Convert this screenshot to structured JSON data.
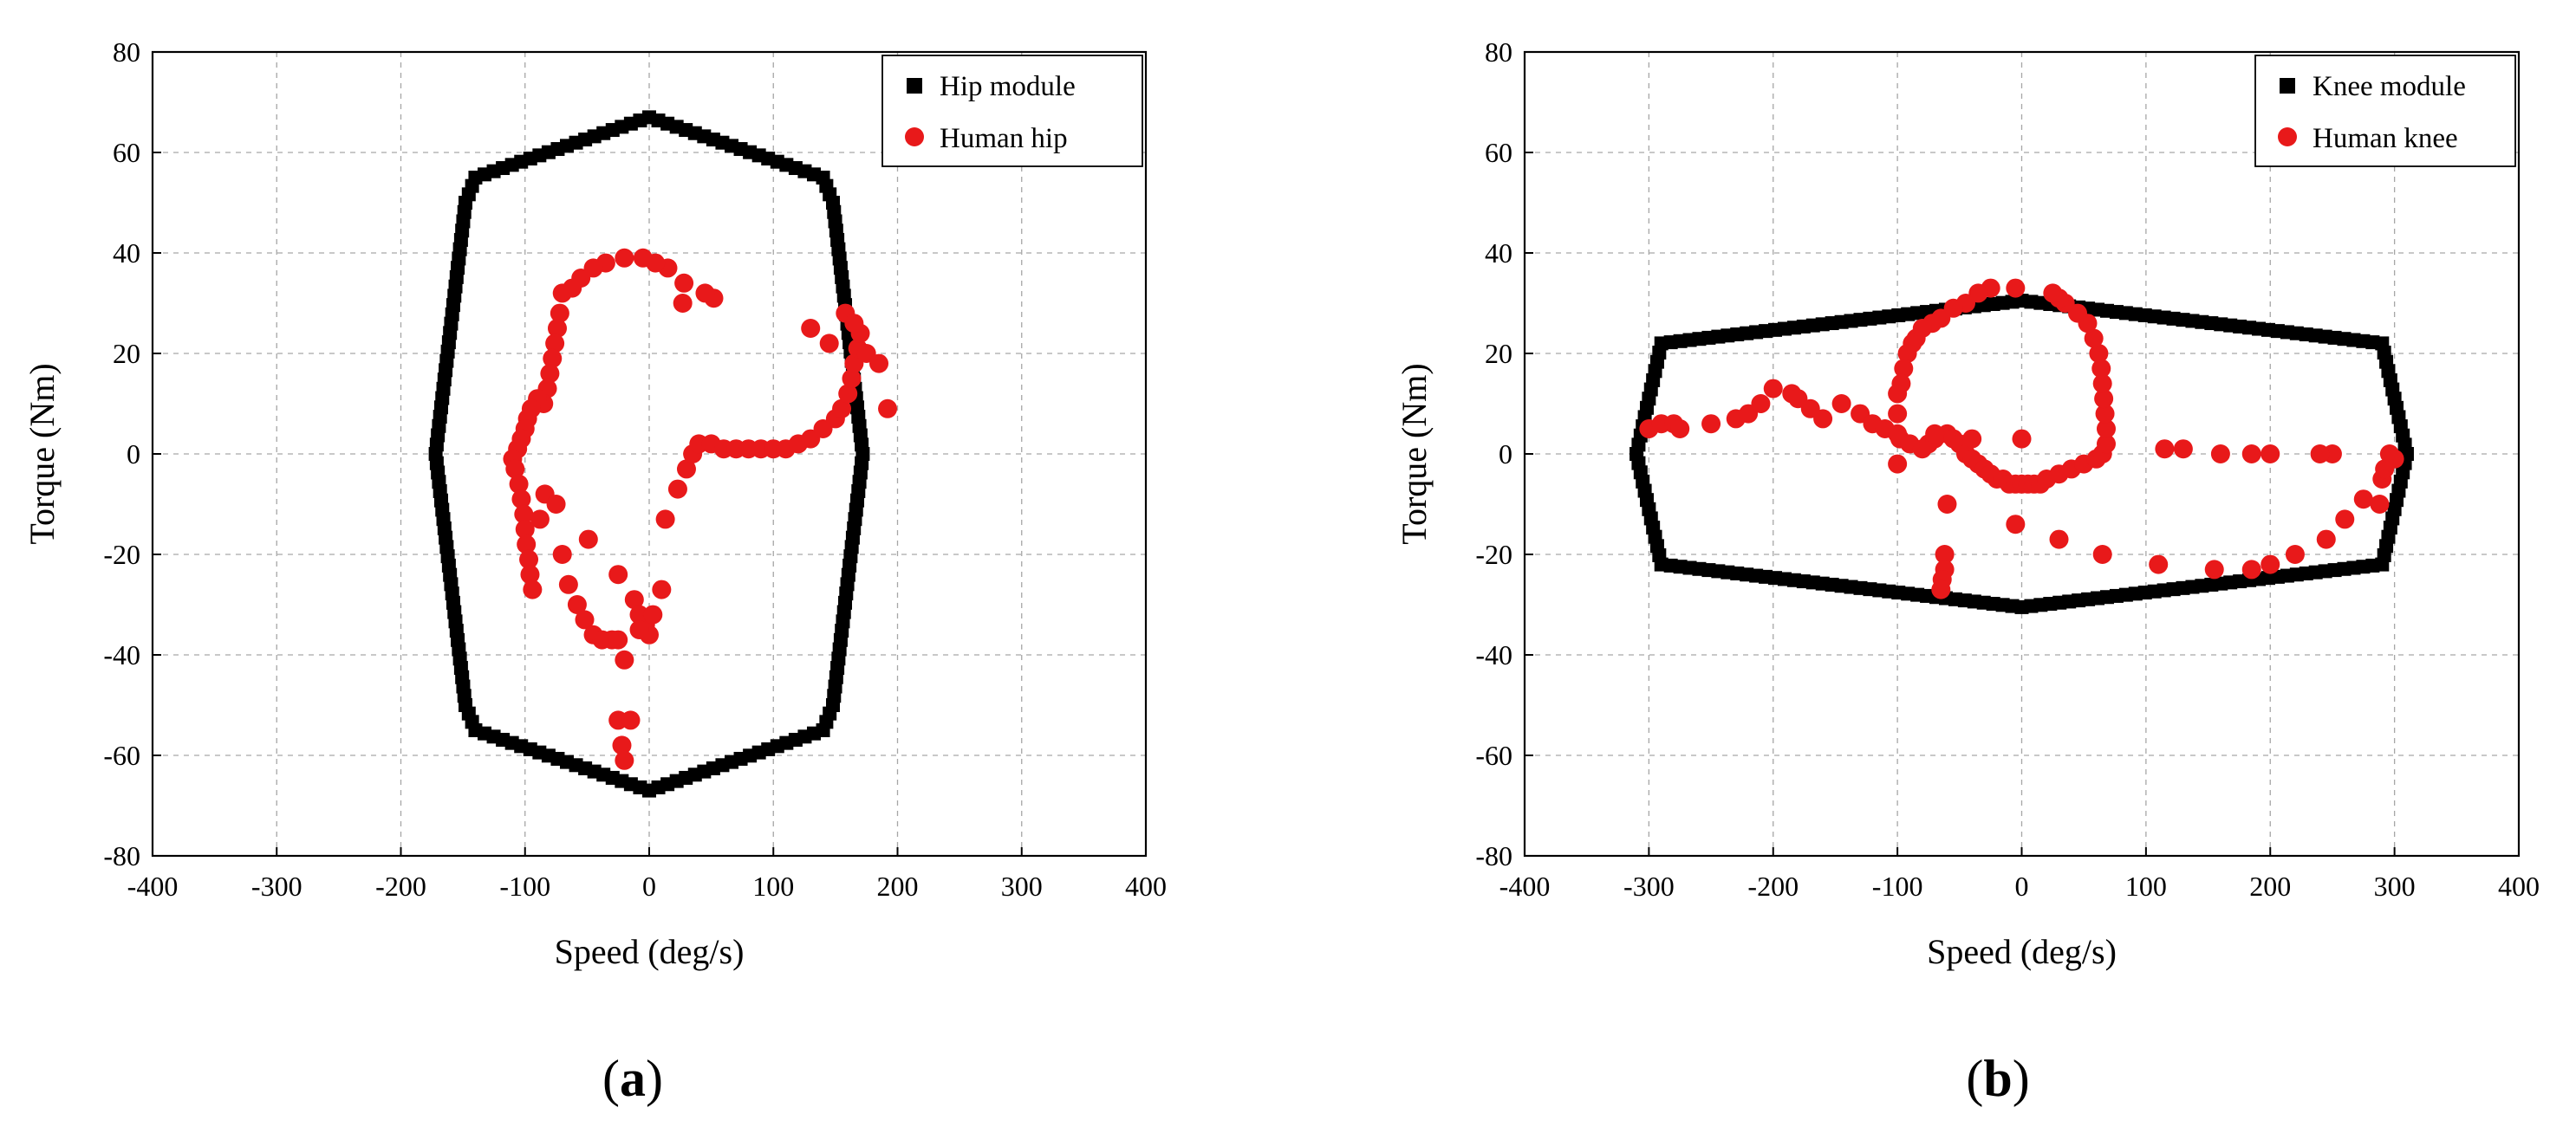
{
  "chart_data": [
    {
      "type": "scatter",
      "panel": "a",
      "xlabel": "Speed (deg/s)",
      "ylabel": "Torque (Nm)",
      "xlim": [
        -400,
        400
      ],
      "ylim": [
        -80,
        80
      ],
      "xticks": [
        -400,
        -300,
        -200,
        -100,
        0,
        100,
        200,
        300,
        400
      ],
      "yticks": [
        -80,
        -60,
        -40,
        -20,
        0,
        20,
        40,
        60,
        80
      ],
      "grid": true,
      "legend_position": "top-right",
      "series": [
        {
          "name": "Hip module",
          "marker": "square",
          "color": "#000000",
          "outline": [
            [
              0,
              67
            ],
            [
              140,
              55
            ],
            [
              148,
              50
            ],
            [
              172,
              0
            ],
            [
              148,
              -50
            ],
            [
              140,
              -55
            ],
            [
              0,
              -67
            ],
            [
              -140,
              -55
            ],
            [
              -148,
              -50
            ],
            [
              -172,
              0
            ],
            [
              -148,
              50
            ],
            [
              -140,
              55
            ],
            [
              0,
              67
            ]
          ]
        },
        {
          "name": "Human hip",
          "marker": "circle",
          "color": "#e8191a",
          "points": [
            [
              52,
              31
            ],
            [
              45,
              32
            ],
            [
              28,
              34
            ],
            [
              27,
              30
            ],
            [
              15,
              37
            ],
            [
              5,
              38
            ],
            [
              -5,
              39
            ],
            [
              -20,
              39
            ],
            [
              -35,
              38
            ],
            [
              -45,
              37
            ],
            [
              -55,
              35
            ],
            [
              -62,
              33
            ],
            [
              -70,
              32
            ],
            [
              -72,
              28
            ],
            [
              -74,
              25
            ],
            [
              -76,
              22
            ],
            [
              -78,
              19
            ],
            [
              -80,
              16
            ],
            [
              -82,
              13
            ],
            [
              -85,
              10
            ],
            [
              -90,
              11
            ],
            [
              -95,
              9
            ],
            [
              -98,
              7
            ],
            [
              -100,
              5
            ],
            [
              -103,
              3
            ],
            [
              -106,
              1
            ],
            [
              -110,
              -1
            ],
            [
              -108,
              -3
            ],
            [
              -105,
              -6
            ],
            [
              -103,
              -9
            ],
            [
              -101,
              -12
            ],
            [
              -100,
              -15
            ],
            [
              -99,
              -18
            ],
            [
              -97,
              -21
            ],
            [
              -96,
              -24
            ],
            [
              -94,
              -27
            ],
            [
              -88,
              -13
            ],
            [
              -84,
              -8
            ],
            [
              -75,
              -10
            ],
            [
              -70,
              -20
            ],
            [
              -65,
              -26
            ],
            [
              -58,
              -30
            ],
            [
              -52,
              -33
            ],
            [
              -45,
              -36
            ],
            [
              -38,
              -37
            ],
            [
              -30,
              -37
            ],
            [
              -25,
              -37
            ],
            [
              -20,
              -41
            ],
            [
              -25,
              -24
            ],
            [
              -12,
              -29
            ],
            [
              -8,
              -32
            ],
            [
              -3,
              -34
            ],
            [
              0,
              -36
            ],
            [
              3,
              -32
            ],
            [
              10,
              -27
            ],
            [
              13,
              -13
            ],
            [
              23,
              -7
            ],
            [
              30,
              -3
            ],
            [
              35,
              0
            ],
            [
              40,
              2
            ],
            [
              50,
              2
            ],
            [
              60,
              1
            ],
            [
              70,
              1
            ],
            [
              80,
              1
            ],
            [
              90,
              1
            ],
            [
              100,
              1
            ],
            [
              110,
              1
            ],
            [
              120,
              2
            ],
            [
              130,
              3
            ],
            [
              140,
              5
            ],
            [
              150,
              7
            ],
            [
              155,
              9
            ],
            [
              160,
              12
            ],
            [
              163,
              15
            ],
            [
              165,
              18
            ],
            [
              168,
              21
            ],
            [
              170,
              24
            ],
            [
              158,
              28
            ],
            [
              165,
              26
            ],
            [
              175,
              20
            ],
            [
              185,
              18
            ],
            [
              192,
              9
            ],
            [
              130,
              25
            ],
            [
              145,
              22
            ],
            [
              -8,
              -35
            ],
            [
              -25,
              -53
            ],
            [
              -15,
              -53
            ],
            [
              -22,
              -58
            ],
            [
              -20,
              -61
            ],
            [
              -49,
              -17
            ]
          ]
        }
      ]
    },
    {
      "type": "scatter",
      "panel": "b",
      "xlabel": "Speed (deg/s)",
      "ylabel": "Torque (Nm)",
      "xlim": [
        -400,
        400
      ],
      "ylim": [
        -80,
        80
      ],
      "xticks": [
        -400,
        -300,
        -200,
        -100,
        0,
        100,
        200,
        300,
        400
      ],
      "yticks": [
        -80,
        -60,
        -40,
        -20,
        0,
        20,
        40,
        60,
        80
      ],
      "grid": true,
      "legend_position": "top-right",
      "series": [
        {
          "name": "Knee module",
          "marker": "square",
          "color": "#000000",
          "outline": [
            [
              0,
              30.5
            ],
            [
              290,
              22
            ],
            [
              310,
              0
            ],
            [
              290,
              -22
            ],
            [
              0,
              -30.5
            ],
            [
              -290,
              -22
            ],
            [
              -310,
              0
            ],
            [
              -290,
              22
            ],
            [
              0,
              30.5
            ]
          ]
        },
        {
          "name": "Human knee",
          "marker": "circle",
          "color": "#e8191a",
          "points": [
            [
              -300,
              5
            ],
            [
              -290,
              6
            ],
            [
              -280,
              6
            ],
            [
              -275,
              5
            ],
            [
              -250,
              6
            ],
            [
              -230,
              7
            ],
            [
              -220,
              8
            ],
            [
              -210,
              10
            ],
            [
              -200,
              13
            ],
            [
              -185,
              12
            ],
            [
              -180,
              11
            ],
            [
              -170,
              9
            ],
            [
              -160,
              7
            ],
            [
              -145,
              10
            ],
            [
              -130,
              8
            ],
            [
              -120,
              6
            ],
            [
              -110,
              5
            ],
            [
              -100,
              4
            ],
            [
              -98,
              3
            ],
            [
              -90,
              2
            ],
            [
              -100,
              -2
            ],
            [
              -80,
              1
            ],
            [
              -75,
              2
            ],
            [
              -70,
              3
            ],
            [
              -60,
              4
            ],
            [
              -55,
              3
            ],
            [
              -50,
              2
            ],
            [
              -45,
              0
            ],
            [
              -40,
              -1
            ],
            [
              -35,
              -2
            ],
            [
              -30,
              -3
            ],
            [
              -25,
              -4
            ],
            [
              -20,
              -5
            ],
            [
              -15,
              -5
            ],
            [
              -10,
              -6
            ],
            [
              -5,
              -6
            ],
            [
              0,
              -6
            ],
            [
              5,
              -6
            ],
            [
              10,
              -6
            ],
            [
              15,
              -6
            ],
            [
              20,
              -5
            ],
            [
              30,
              -4
            ],
            [
              40,
              -3
            ],
            [
              50,
              -2
            ],
            [
              60,
              -1
            ],
            [
              65,
              0
            ],
            [
              68,
              2
            ],
            [
              68,
              5
            ],
            [
              67,
              8
            ],
            [
              66,
              11
            ],
            [
              65,
              14
            ],
            [
              64,
              17
            ],
            [
              62,
              20
            ],
            [
              58,
              23
            ],
            [
              53,
              26
            ],
            [
              45,
              28
            ],
            [
              35,
              30
            ],
            [
              30,
              31
            ],
            [
              25,
              32
            ],
            [
              -5,
              33
            ],
            [
              -25,
              33
            ],
            [
              -35,
              32
            ],
            [
              -45,
              30
            ],
            [
              -55,
              29
            ],
            [
              -65,
              27
            ],
            [
              -72,
              26
            ],
            [
              -80,
              25
            ],
            [
              -85,
              23
            ],
            [
              -88,
              22
            ],
            [
              -92,
              20
            ],
            [
              -95,
              17
            ],
            [
              -97,
              14
            ],
            [
              -100,
              12
            ],
            [
              -100,
              8
            ],
            [
              -70,
              4
            ],
            [
              -40,
              3
            ],
            [
              0,
              3
            ],
            [
              -60,
              -10
            ],
            [
              -62,
              -20
            ],
            [
              -62,
              -23
            ],
            [
              -64,
              -25
            ],
            [
              -65,
              -27
            ],
            [
              -5,
              -14
            ],
            [
              30,
              -17
            ],
            [
              65,
              -20
            ],
            [
              110,
              -22
            ],
            [
              155,
              -23
            ],
            [
              185,
              -23
            ],
            [
              200,
              -22
            ],
            [
              220,
              -20
            ],
            [
              245,
              -17
            ],
            [
              260,
              -13
            ],
            [
              275,
              -9
            ],
            [
              288,
              -10
            ],
            [
              290,
              -5
            ],
            [
              292,
              -3
            ],
            [
              296,
              0
            ],
            [
              300,
              -1
            ],
            [
              250,
              0
            ],
            [
              240,
              0
            ],
            [
              200,
              0
            ],
            [
              185,
              0
            ],
            [
              160,
              0
            ],
            [
              130,
              1
            ],
            [
              115,
              1
            ]
          ]
        }
      ]
    }
  ],
  "panels": [
    {
      "label_open": "(",
      "label_letter": "a",
      "label_close": ")",
      "legend": [
        "Hip module",
        "Human hip"
      ]
    },
    {
      "label_open": "(",
      "label_letter": "b",
      "label_close": ")",
      "legend": [
        "Knee module",
        "Human knee"
      ]
    }
  ]
}
